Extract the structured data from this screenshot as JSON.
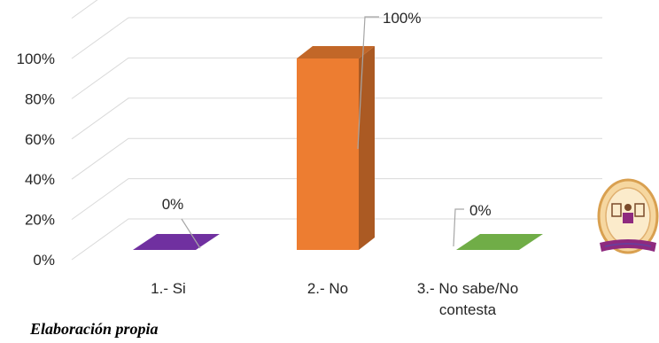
{
  "chart_data": {
    "type": "bar",
    "categories": [
      "1.- Si",
      "2.- No",
      "3.- No sabe/No contesta"
    ],
    "values": [
      0,
      100,
      0
    ],
    "data_labels": [
      "0%",
      "100%",
      "0%"
    ],
    "y_ticks": [
      "0%",
      "20%",
      "40%",
      "60%",
      "80%",
      "100%"
    ],
    "ylim": [
      0,
      100
    ],
    "bar_colors": [
      "#7030A0",
      "#ED7D31",
      "#70AD47"
    ],
    "grid": true,
    "legend": "none",
    "title": "",
    "xlabel": "",
    "ylabel": ""
  },
  "caption": "Elaboración propia",
  "logo": {
    "icon": "institution-seal-icon",
    "colors": [
      "#F2C27A",
      "#8E2A7F",
      "#6A3D9A"
    ]
  }
}
